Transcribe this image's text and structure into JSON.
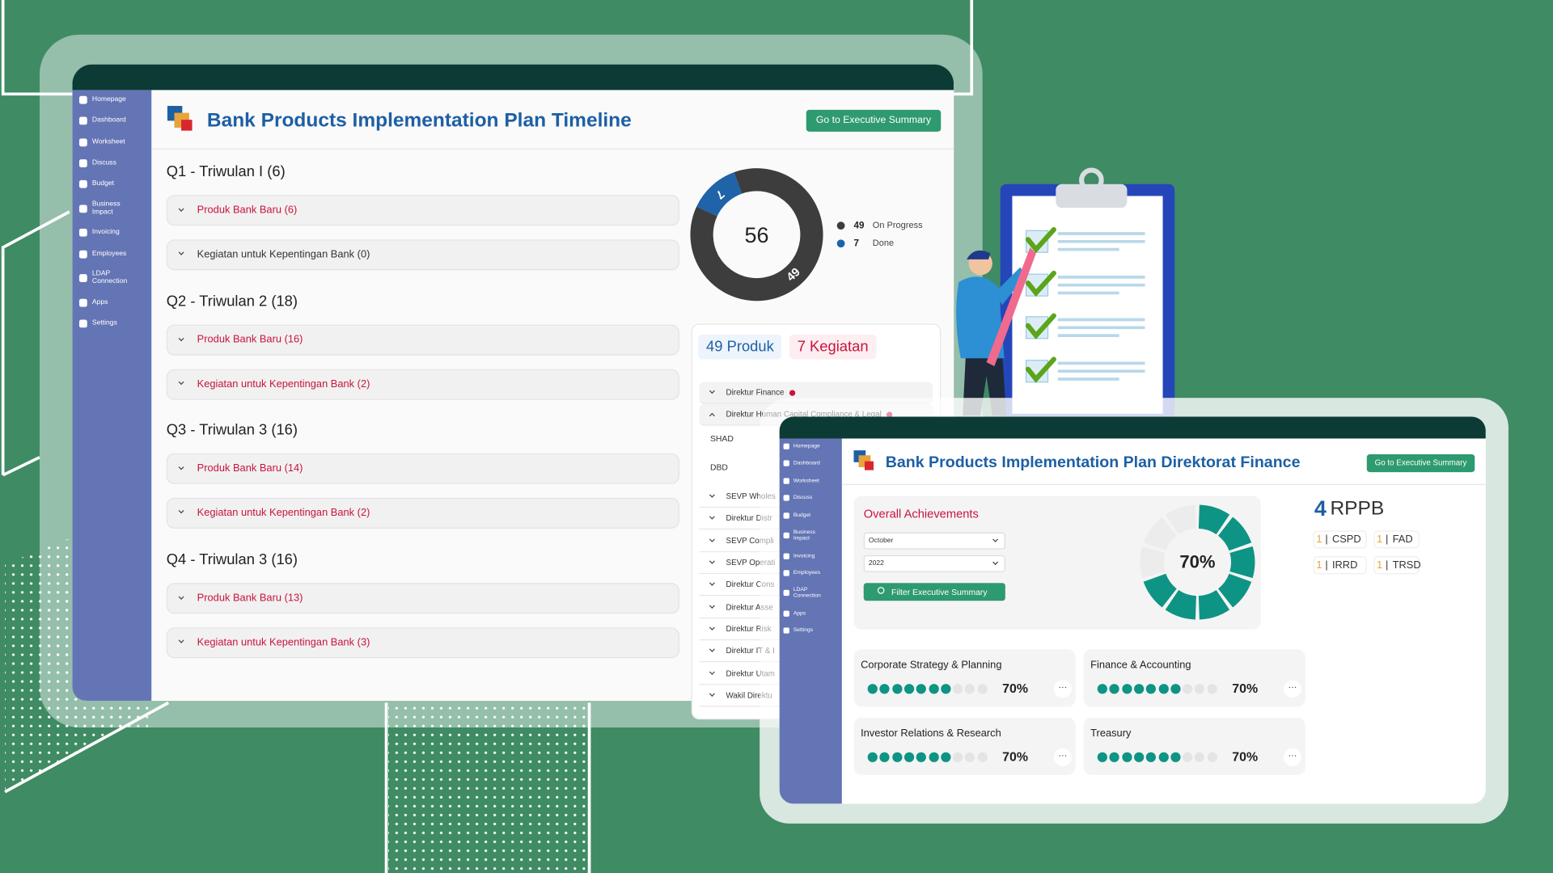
{
  "timeline_window": {
    "sidebar": [
      "Homepage",
      "Dashboard",
      "Worksheet",
      "Discuss",
      "Budget",
      "Business Impact",
      "Invoicing",
      "Employees",
      "LDAP Connection",
      "Apps",
      "Settings"
    ],
    "title": "Bank Products Implementation Plan Timeline",
    "button": "Go to Executive Summary",
    "quarters": [
      {
        "title": "Q1 - Triwulan I (6)",
        "items": [
          {
            "label": "Produk Bank Baru (6)",
            "highlight": true
          },
          {
            "label": "Kegiatan untuk Kepentingan Bank (0)",
            "highlight": false
          }
        ]
      },
      {
        "title": "Q2 - Triwulan 2 (18)",
        "items": [
          {
            "label": "Produk Bank Baru (16)",
            "highlight": true
          },
          {
            "label": "Kegiatan untuk Kepentingan Bank (2)",
            "highlight": true
          }
        ]
      },
      {
        "title": "Q3 - Triwulan 3 (16)",
        "items": [
          {
            "label": "Produk Bank Baru (14)",
            "highlight": true
          },
          {
            "label": "Kegiatan untuk Kepentingan Bank (2)",
            "highlight": true
          }
        ]
      },
      {
        "title": "Q4 - Triwulan 3 (16)",
        "items": [
          {
            "label": "Produk Bank Baru (13)",
            "highlight": true
          },
          {
            "label": "Kegiatan untuk Kepentingan Bank (3)",
            "highlight": true
          }
        ]
      }
    ],
    "status_chart": {
      "type": "donut",
      "total": 56,
      "segments": [
        {
          "name": "On Progress",
          "value": 49,
          "color": "#3d3d3d"
        },
        {
          "name": "Done",
          "value": 7,
          "color": "#1f63a8"
        }
      ]
    },
    "counts": [
      {
        "label": "49 Produk",
        "color": "#1d5fa5",
        "background": "#eef4fb"
      },
      {
        "label": "7 Kegiatan",
        "color": "#c8143c",
        "background": "#fdeef1"
      }
    ],
    "directorates": [
      {
        "label": "Direktur Finance",
        "chevron": "down",
        "dot": true
      },
      {
        "label": "Direktur Human Capital Compliance & Legal",
        "chevron": "up",
        "dot": true
      },
      {
        "label": "SHAD",
        "chevron": null,
        "dot": false
      },
      {
        "label": "DBD",
        "chevron": null,
        "dot": false
      },
      {
        "label": "SEVP Wholes",
        "chevron": "down",
        "dot": false
      },
      {
        "label": "Direktur Distr",
        "chevron": "down",
        "dot": false
      },
      {
        "label": "SEVP Compli",
        "chevron": "down",
        "dot": false
      },
      {
        "label": "SEVP Operati",
        "chevron": "down",
        "dot": false
      },
      {
        "label": "Direktur Cons",
        "chevron": "down",
        "dot": false
      },
      {
        "label": "Direktur Asse",
        "chevron": "down",
        "dot": false
      },
      {
        "label": "Direktur Risk",
        "chevron": "down",
        "dot": false
      },
      {
        "label": "Direktur IT & I",
        "chevron": "down",
        "dot": false
      },
      {
        "label": "Direktur Utam",
        "chevron": "down",
        "dot": false
      },
      {
        "label": "Wakil Direktu",
        "chevron": "down",
        "dot": false
      }
    ]
  },
  "finance_window": {
    "sidebar": [
      "Homepage",
      "Dashboard",
      "Worksheet",
      "Discuss",
      "Budget",
      "Business Impact",
      "Invoicing",
      "Employees",
      "LDAP Connection",
      "Apps",
      "Settings"
    ],
    "title": "Bank Products Implementation Plan Direktorat Finance",
    "button": "Go to Executive Summary",
    "achievements": {
      "title": "Overall Achievements",
      "month": "October",
      "year": "2022",
      "filter_button": "Filter Executive Summary",
      "gauge": {
        "value": 70,
        "label": "70%",
        "color": "#0e9484"
      }
    },
    "rppb": {
      "count": 4,
      "label": "RPPB",
      "units": [
        {
          "count": 1,
          "name": "CSPD"
        },
        {
          "count": 1,
          "name": "FAD"
        },
        {
          "count": 1,
          "name": "IRRD"
        },
        {
          "count": 1,
          "name": "TRSD"
        }
      ]
    },
    "divisions": [
      {
        "name": "Corporate Strategy & Planning",
        "progress": 70,
        "progress_label": "70%"
      },
      {
        "name": "Finance & Accounting",
        "progress": 70,
        "progress_label": "70%"
      },
      {
        "name": "Investor Relations & Research",
        "progress": 70,
        "progress_label": "70%"
      },
      {
        "name": "Treasury",
        "progress": 70,
        "progress_label": "70%"
      }
    ]
  }
}
